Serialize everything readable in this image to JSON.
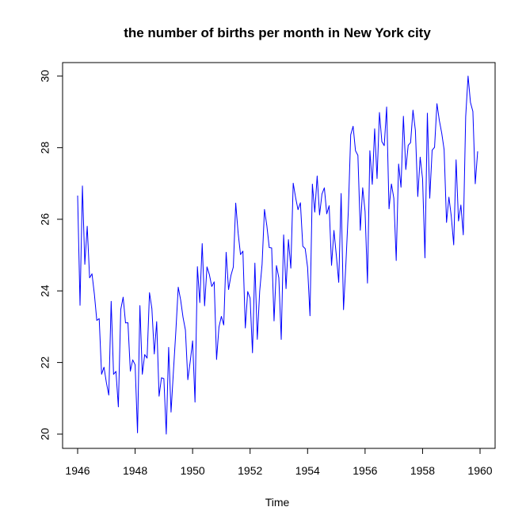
{
  "chart_data": {
    "type": "line",
    "title": "the number of births per month in New York city",
    "xlabel": "Time",
    "ylabel": "",
    "xlim": [
      1946,
      1960
    ],
    "ylim": [
      20,
      30
    ],
    "x_ticks": [
      1946,
      1948,
      1950,
      1952,
      1954,
      1956,
      1958,
      1960
    ],
    "x_tick_labels": [
      "1946",
      "1948",
      "1950",
      "1952",
      "1954",
      "1956",
      "1958",
      "1960"
    ],
    "y_ticks": [
      20,
      22,
      24,
      26,
      28,
      30
    ],
    "y_tick_labels": [
      "20",
      "22",
      "24",
      "26",
      "28",
      "30"
    ],
    "grid": false,
    "frequency": 12,
    "start": 1946,
    "series": [
      {
        "color": "#0000ff",
        "values": [
          26.663,
          23.598,
          26.931,
          24.74,
          25.806,
          24.364,
          24.477,
          23.901,
          23.175,
          23.227,
          21.672,
          21.87,
          21.439,
          21.089,
          23.709,
          21.669,
          21.752,
          20.761,
          23.479,
          23.824,
          23.105,
          23.11,
          21.759,
          22.073,
          21.937,
          20.035,
          23.59,
          21.672,
          22.222,
          22.123,
          23.95,
          23.504,
          22.238,
          23.142,
          21.059,
          21.573,
          21.548,
          20.0,
          22.424,
          20.615,
          21.761,
          22.874,
          24.104,
          23.748,
          23.262,
          22.907,
          21.519,
          22.025,
          22.604,
          20.894,
          24.677,
          23.673,
          25.32,
          23.583,
          24.671,
          24.454,
          24.122,
          24.252,
          22.084,
          22.991,
          23.287,
          23.049,
          25.076,
          24.037,
          24.43,
          24.667,
          26.451,
          25.618,
          25.014,
          25.11,
          22.964,
          23.981,
          23.798,
          22.27,
          24.775,
          22.646,
          23.988,
          24.737,
          26.276,
          25.816,
          25.21,
          25.199,
          23.162,
          24.707,
          24.364,
          22.644,
          25.565,
          24.062,
          25.431,
          24.635,
          27.009,
          26.606,
          26.268,
          26.462,
          25.246,
          25.18,
          24.657,
          23.304,
          26.982,
          26.199,
          27.21,
          26.122,
          26.706,
          26.878,
          26.152,
          26.379,
          24.712,
          25.688,
          24.99,
          24.239,
          26.721,
          23.475,
          24.767,
          26.219,
          28.361,
          28.599,
          27.914,
          27.784,
          25.693,
          26.881,
          26.217,
          24.218,
          27.914,
          26.975,
          28.527,
          27.139,
          28.982,
          28.169,
          28.056,
          29.136,
          26.291,
          26.987,
          26.589,
          24.848,
          27.543,
          26.896,
          28.878,
          27.39,
          28.065,
          28.141,
          29.048,
          28.484,
          26.634,
          27.735,
          27.132,
          24.924,
          28.963,
          26.589,
          27.931,
          28.009,
          29.229,
          28.759,
          28.405,
          27.945,
          25.912,
          26.619,
          26.076,
          25.286,
          27.66,
          25.951,
          26.398,
          25.565,
          28.865,
          30.0,
          29.261,
          29.012,
          26.992,
          27.897
        ]
      }
    ]
  }
}
